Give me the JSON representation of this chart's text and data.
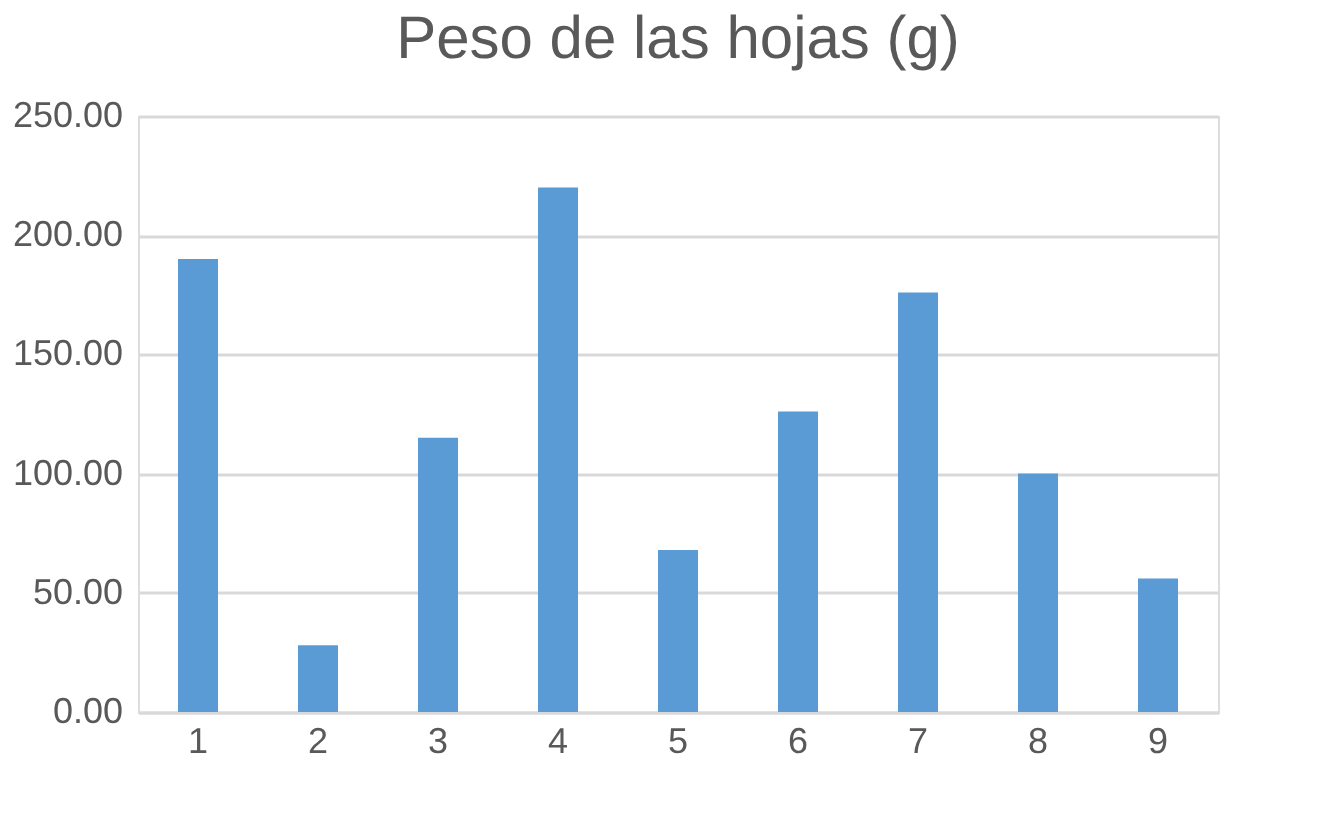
{
  "chart_data": {
    "type": "bar",
    "title": "Peso de las hojas (g)",
    "categories": [
      "1",
      "2",
      "3",
      "4",
      "5",
      "6",
      "7",
      "8",
      "9"
    ],
    "values": [
      190,
      28,
      115,
      220,
      68,
      126,
      176,
      100,
      56
    ],
    "color": "#5b9bd5",
    "ylim": [
      0,
      250
    ],
    "yticks": [
      {
        "value": 0,
        "label": "0.00"
      },
      {
        "value": 50,
        "label": "50.00"
      },
      {
        "value": 100,
        "label": "100.00"
      },
      {
        "value": 150,
        "label": "150.00"
      },
      {
        "value": 200,
        "label": "200.00"
      },
      {
        "value": 250,
        "label": "250.00"
      }
    ],
    "grid": "y"
  }
}
